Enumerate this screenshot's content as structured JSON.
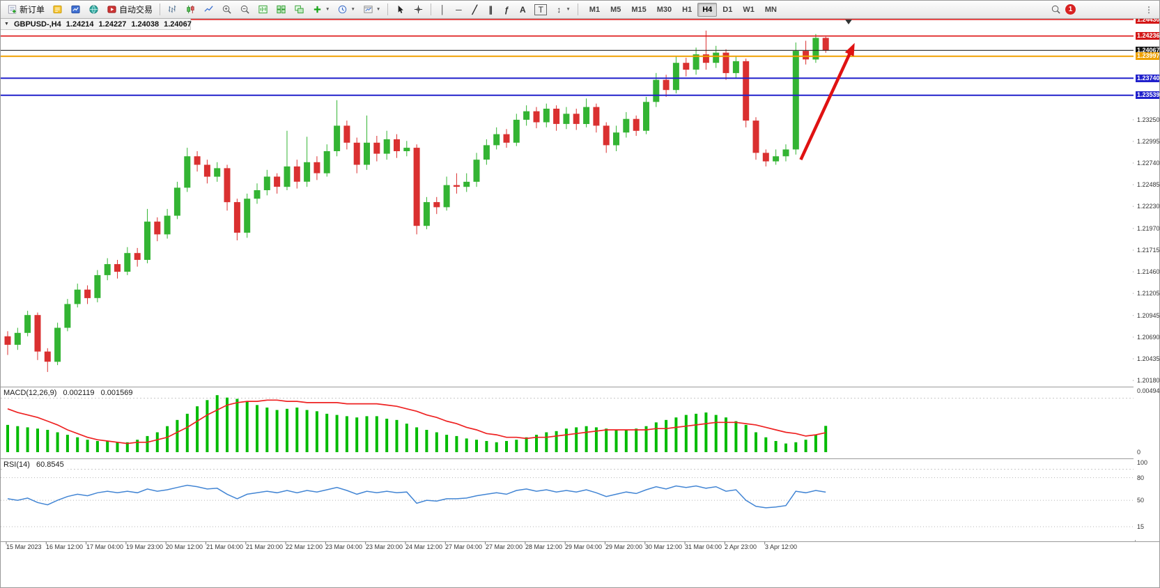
{
  "toolbar": {
    "new_order": "新订单",
    "autotrade": "自动交易",
    "timeframes": [
      "M1",
      "M5",
      "M15",
      "M30",
      "H1",
      "H4",
      "D1",
      "W1",
      "MN"
    ],
    "active_timeframe": "H4",
    "notification_count": "1"
  },
  "icons": {
    "vertical_line": "│",
    "horizontal_line": "─",
    "trendline": "╱",
    "channel": "∥",
    "fibonacci": "ƒ",
    "text": "A",
    "label": "T",
    "arrows": "↕",
    "dropdown_caret": "▼",
    "collapse": "▼",
    "overflow": "⋮"
  },
  "chart_header": {
    "symbol_period": "GBPUSD-,H4",
    "open": "1.24214",
    "high": "1.24227",
    "low": "1.24038",
    "close": "1.24067"
  },
  "indicators": {
    "macd_label": "MACD(12,26,9)",
    "macd_value": "0.002119",
    "macd_signal": "0.001569",
    "rsi_label": "RSI(14)",
    "rsi_value": "60.8545"
  },
  "price_axis": {
    "badges": [
      {
        "text": "1.24430",
        "color": "#d31717"
      },
      {
        "text": "1.24236",
        "color": "#d31717"
      },
      {
        "text": "1.24067",
        "color": "#161616"
      },
      {
        "text": "1.23997",
        "color": "#eda000"
      },
      {
        "text": "1.23740",
        "color": "#2121cc"
      },
      {
        "text": "1.23539",
        "color": "#2121cc"
      }
    ],
    "grid_labels": [
      "1.23250",
      "1.22995",
      "1.22740",
      "1.22485",
      "1.22230",
      "1.21970",
      "1.21715",
      "1.21460",
      "1.21205",
      "1.20945",
      "1.20690",
      "1.20435",
      "1.20180"
    ]
  },
  "macd_axis": [
    "0.004948",
    "0"
  ],
  "rsi_axis": [
    "100",
    "80",
    "50",
    "15"
  ],
  "time_axis": [
    "15 Mar 2023",
    "16 Mar 12:00",
    "17 Mar 04:00",
    "19 Mar 23:00",
    "20 Mar 12:00",
    "21 Mar 04:00",
    "21 Mar 20:00",
    "22 Mar 12:00",
    "23 Mar 04:00",
    "23 Mar 20:00",
    "24 Mar 12:00",
    "27 Mar 04:00",
    "27 Mar 20:00",
    "28 Mar 12:00",
    "29 Mar 04:00",
    "29 Mar 20:00",
    "30 Mar 12:00",
    "31 Mar 04:00",
    "2 Apr 23:00",
    "3 Apr 12:00"
  ],
  "chart_data": [
    {
      "type": "candlestick",
      "symbol": "GBPUSD",
      "timeframe": "H4",
      "up_color": "#33b433",
      "down_color": "#da3030",
      "ylim": [
        1.20115,
        1.24455
      ],
      "hlines": [
        {
          "price": 1.2443,
          "color": "#dd1111",
          "width": 1.6
        },
        {
          "price": 1.24236,
          "color": "#dd1111",
          "width": 1.6
        },
        {
          "price": 1.24067,
          "color": "#222222",
          "width": 1.2
        },
        {
          "price": 1.23997,
          "color": "#f0a000",
          "width": 2
        },
        {
          "price": 1.2374,
          "color": "#2222cc",
          "width": 2
        },
        {
          "price": 1.23539,
          "color": "#2222cc",
          "width": 2
        }
      ],
      "candles": [
        [
          1.207,
          1.2076,
          1.2048,
          1.206
        ],
        [
          1.206,
          1.208,
          1.2054,
          1.2074
        ],
        [
          1.2074,
          1.21,
          1.207,
          1.2095
        ],
        [
          1.2095,
          1.2098,
          1.2042,
          1.2052
        ],
        [
          1.2052,
          1.2056,
          1.2028,
          1.204
        ],
        [
          1.204,
          1.2086,
          1.2036,
          1.208
        ],
        [
          1.208,
          1.2114,
          1.2076,
          1.2108
        ],
        [
          1.2108,
          1.2132,
          1.2104,
          1.2125
        ],
        [
          1.2125,
          1.213,
          1.2108,
          1.2115
        ],
        [
          1.2115,
          1.2148,
          1.211,
          1.2142
        ],
        [
          1.2142,
          1.2162,
          1.2136,
          1.2155
        ],
        [
          1.2155,
          1.216,
          1.2138,
          1.2146
        ],
        [
          1.2146,
          1.2175,
          1.2142,
          1.2168
        ],
        [
          1.2168,
          1.2174,
          1.2152,
          1.216
        ],
        [
          1.216,
          1.222,
          1.2156,
          1.2205
        ],
        [
          1.2205,
          1.221,
          1.2182,
          1.219
        ],
        [
          1.219,
          1.222,
          1.2185,
          1.2212
        ],
        [
          1.2212,
          1.2252,
          1.2208,
          1.2245
        ],
        [
          1.2245,
          1.2292,
          1.224,
          1.2282
        ],
        [
          1.2282,
          1.2288,
          1.2264,
          1.2272
        ],
        [
          1.2272,
          1.2278,
          1.225,
          1.2258
        ],
        [
          1.2258,
          1.2275,
          1.2252,
          1.2268
        ],
        [
          1.2268,
          1.2272,
          1.2218,
          1.2228
        ],
        [
          1.2228,
          1.2232,
          1.2183,
          1.2192
        ],
        [
          1.2192,
          1.2238,
          1.2186,
          1.2232
        ],
        [
          1.2232,
          1.225,
          1.2226,
          1.2242
        ],
        [
          1.2242,
          1.2266,
          1.2236,
          1.2258
        ],
        [
          1.2258,
          1.2262,
          1.2238,
          1.2246
        ],
        [
          1.2246,
          1.2312,
          1.2242,
          1.227
        ],
        [
          1.227,
          1.2278,
          1.2244,
          1.2252
        ],
        [
          1.2252,
          1.2305,
          1.2246,
          1.2275
        ],
        [
          1.2275,
          1.2282,
          1.2254,
          1.2262
        ],
        [
          1.2262,
          1.2296,
          1.2258,
          1.2288
        ],
        [
          1.2288,
          1.2348,
          1.2282,
          1.2318
        ],
        [
          1.2318,
          1.2324,
          1.229,
          1.2298
        ],
        [
          1.2298,
          1.2304,
          1.2262,
          1.2272
        ],
        [
          1.2272,
          1.233,
          1.2266,
          1.2298
        ],
        [
          1.2298,
          1.2306,
          1.2276,
          1.2285
        ],
        [
          1.2285,
          1.2312,
          1.2278,
          1.2302
        ],
        [
          1.2302,
          1.2308,
          1.228,
          1.2288
        ],
        [
          1.2288,
          1.23,
          1.2282,
          1.2292
        ],
        [
          1.2292,
          1.2296,
          1.219,
          1.22
        ],
        [
          1.22,
          1.2234,
          1.2196,
          1.2228
        ],
        [
          1.2228,
          1.2234,
          1.2214,
          1.2222
        ],
        [
          1.2222,
          1.2258,
          1.2218,
          1.2248
        ],
        [
          1.2248,
          1.2262,
          1.2238,
          1.2246
        ],
        [
          1.2246,
          1.2262,
          1.224,
          1.2252
        ],
        [
          1.2252,
          1.2286,
          1.2246,
          1.2278
        ],
        [
          1.2278,
          1.2302,
          1.2272,
          1.2295
        ],
        [
          1.2295,
          1.2316,
          1.229,
          1.2308
        ],
        [
          1.2308,
          1.2314,
          1.2292,
          1.2298
        ],
        [
          1.2298,
          1.2332,
          1.2294,
          1.2325
        ],
        [
          1.2325,
          1.2342,
          1.2318,
          1.2335
        ],
        [
          1.2335,
          1.234,
          1.2315,
          1.2322
        ],
        [
          1.2322,
          1.2344,
          1.2316,
          1.2338
        ],
        [
          1.2338,
          1.2342,
          1.2312,
          1.232
        ],
        [
          1.232,
          1.234,
          1.2314,
          1.2332
        ],
        [
          1.2332,
          1.2338,
          1.2313,
          1.232
        ],
        [
          1.232,
          1.235,
          1.2316,
          1.234
        ],
        [
          1.234,
          1.2344,
          1.231,
          1.2318
        ],
        [
          1.2318,
          1.2322,
          1.2286,
          1.2295
        ],
        [
          1.2295,
          1.2318,
          1.2288,
          1.231
        ],
        [
          1.231,
          1.2334,
          1.2304,
          1.2326
        ],
        [
          1.2326,
          1.233,
          1.2306,
          1.2312
        ],
        [
          1.2312,
          1.2352,
          1.2308,
          1.2346
        ],
        [
          1.2346,
          1.238,
          1.234,
          1.2372
        ],
        [
          1.2372,
          1.2378,
          1.2352,
          1.236
        ],
        [
          1.236,
          1.24,
          1.2356,
          1.2392
        ],
        [
          1.2392,
          1.2398,
          1.2376,
          1.2384
        ],
        [
          1.2384,
          1.241,
          1.2378,
          1.2402
        ],
        [
          1.2402,
          1.243,
          1.2384,
          1.2392
        ],
        [
          1.2392,
          1.2412,
          1.2386,
          1.2404
        ],
        [
          1.2404,
          1.2408,
          1.2372,
          1.238
        ],
        [
          1.238,
          1.24,
          1.2374,
          1.2394
        ],
        [
          1.2394,
          1.2397,
          1.2316,
          1.2324
        ],
        [
          1.2324,
          1.2328,
          1.2278,
          1.2286
        ],
        [
          1.2286,
          1.229,
          1.227,
          1.2276
        ],
        [
          1.2276,
          1.229,
          1.2272,
          1.2282
        ],
        [
          1.2282,
          1.2296,
          1.2276,
          1.229
        ],
        [
          1.229,
          1.2416,
          1.2284,
          1.2406
        ],
        [
          1.2406,
          1.2418,
          1.239,
          1.2396
        ],
        [
          1.2396,
          1.2426,
          1.2392,
          1.24214
        ],
        [
          1.24214,
          1.24227,
          1.24038,
          1.24067
        ]
      ]
    },
    {
      "type": "bar",
      "name": "MACD(12,26,9)",
      "ylim": [
        0,
        0.004948
      ],
      "histogram_color": "#00bb00",
      "signal_color": "#ee2222",
      "histogram": [
        0.0022,
        0.0021,
        0.002,
        0.0019,
        0.0018,
        0.0016,
        0.0014,
        0.0012,
        0.001,
        0.0009,
        0.0009,
        0.0008,
        0.0008,
        0.001,
        0.0013,
        0.0016,
        0.0021,
        0.0026,
        0.0031,
        0.0037,
        0.0042,
        0.0046,
        0.0044,
        0.0043,
        0.0041,
        0.0038,
        0.0036,
        0.0034,
        0.0035,
        0.0036,
        0.0034,
        0.0033,
        0.0031,
        0.003,
        0.0029,
        0.0028,
        0.0029,
        0.0029,
        0.0027,
        0.0026,
        0.0023,
        0.002,
        0.0018,
        0.0016,
        0.0014,
        0.0013,
        0.0011,
        0.001,
        0.0009,
        0.0008,
        0.0009,
        0.001,
        0.0012,
        0.0014,
        0.0016,
        0.0017,
        0.0019,
        0.002,
        0.0021,
        0.002,
        0.0019,
        0.0018,
        0.0018,
        0.0019,
        0.0021,
        0.0024,
        0.0026,
        0.0028,
        0.003,
        0.0031,
        0.0032,
        0.003,
        0.0028,
        0.0025,
        0.0022,
        0.0016,
        0.0012,
        0.0009,
        0.0007,
        0.0008,
        0.001,
        0.0014,
        0.002119
      ],
      "signal": [
        0.0035,
        0.0032,
        0.003,
        0.0028,
        0.0025,
        0.0022,
        0.0018,
        0.0015,
        0.0012,
        0.001,
        0.0009,
        0.0008,
        0.0007,
        0.0008,
        0.0008,
        0.001,
        0.0012,
        0.0016,
        0.002,
        0.0025,
        0.003,
        0.0034,
        0.0038,
        0.004,
        0.0041,
        0.0041,
        0.0042,
        0.0042,
        0.0041,
        0.0041,
        0.004,
        0.004,
        0.004,
        0.004,
        0.0039,
        0.0039,
        0.0039,
        0.0039,
        0.0038,
        0.0037,
        0.0035,
        0.0033,
        0.003,
        0.0028,
        0.0025,
        0.0023,
        0.002,
        0.0018,
        0.0015,
        0.0014,
        0.0012,
        0.0012,
        0.0011,
        0.0012,
        0.0012,
        0.0013,
        0.0014,
        0.0015,
        0.0016,
        0.0017,
        0.0018,
        0.0018,
        0.0018,
        0.0018,
        0.0018,
        0.0019,
        0.0019,
        0.002,
        0.0021,
        0.0022,
        0.0023,
        0.0024,
        0.0024,
        0.0024,
        0.0023,
        0.0022,
        0.002,
        0.0018,
        0.0016,
        0.0015,
        0.0013,
        0.0014,
        0.001569
      ]
    },
    {
      "type": "line",
      "name": "RSI(14)",
      "ylim": [
        0,
        100
      ],
      "levels": [
        80,
        50,
        15
      ],
      "color": "#4285d4",
      "values": [
        52,
        50,
        53,
        47,
        44,
        50,
        55,
        58,
        56,
        60,
        62,
        60,
        62,
        60,
        65,
        62,
        64,
        67,
        70,
        68,
        65,
        66,
        58,
        52,
        58,
        60,
        62,
        60,
        63,
        60,
        63,
        61,
        64,
        67,
        63,
        58,
        62,
        60,
        62,
        60,
        61,
        46,
        50,
        49,
        52,
        52,
        53,
        56,
        58,
        60,
        58,
        63,
        65,
        62,
        64,
        61,
        63,
        61,
        64,
        60,
        55,
        58,
        61,
        59,
        64,
        68,
        65,
        69,
        67,
        69,
        66,
        68,
        62,
        64,
        50,
        42,
        40,
        41,
        43,
        62,
        60,
        63,
        60.85
      ]
    }
  ],
  "annotation": {
    "type": "arrow",
    "color": "#e01212",
    "from": {
      "bar": 79.5,
      "price": 1.2278
    },
    "to": {
      "bar": 84.6,
      "price": 1.2408
    }
  }
}
